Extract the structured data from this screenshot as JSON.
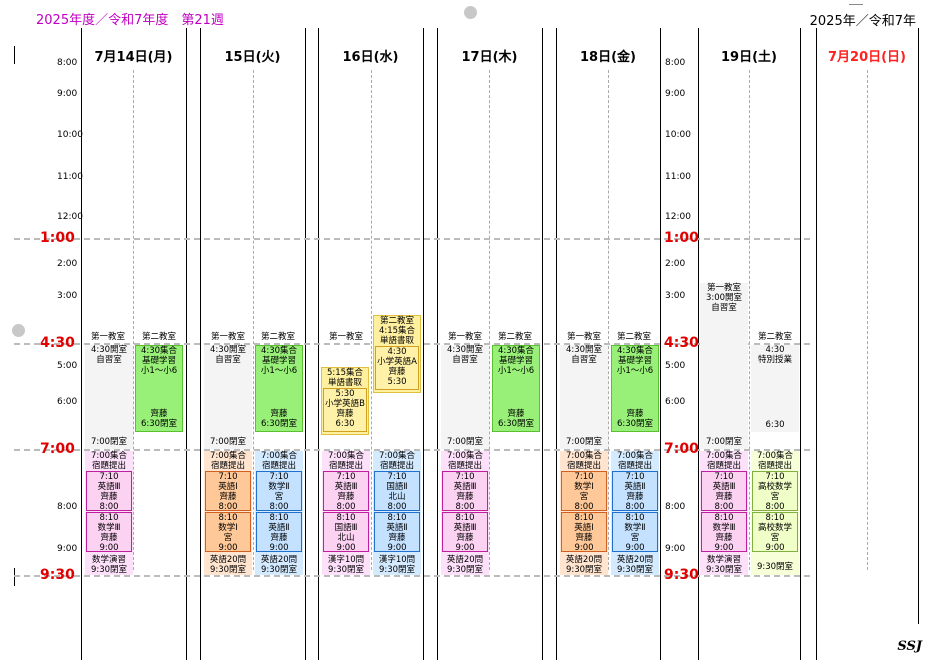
{
  "header": {
    "left": "2025年度／令和7年度　第21週",
    "right": "2025年／令和7年"
  },
  "days": [
    "7月14日(月)",
    "15日(火)",
    "16日(水)",
    "17日(木)",
    "18日(金)",
    "19日(土)",
    "7月20日(日)"
  ],
  "times": [
    "8:00",
    "9:00",
    "10:00",
    "11:00",
    "12:00",
    "1:00",
    "2:00",
    "3:00",
    "4:30",
    "5:00",
    "6:00",
    "7:00",
    "8:00",
    "9:00",
    "9:30"
  ],
  "room1": "第一教室",
  "room2": "第二教室",
  "mon": {
    "r1a": "4:30開室",
    "r1b": "自習室",
    "r1c": "7:00閉室",
    "r2a": "4:30集合",
    "r2b": "基礎学習",
    "r2c": "小1～小6",
    "r2d": "齊藤",
    "r2e": "6:30閉室",
    "e1a": "7:00集合",
    "e1b": "宿題提出",
    "e2a": "7:10",
    "e2b": "英語Ⅲ",
    "e2c": "齊藤",
    "e2d": "8:00",
    "e3a": "8:10",
    "e3b": "数学Ⅲ",
    "e3c": "齊藤",
    "e3d": "9:00",
    "e4a": "数学演習",
    "e4b": "9:30閉室"
  },
  "tue": {
    "r1a": "4:30開室",
    "r1b": "自習室",
    "r1c": "7:00閉室",
    "r2a": "4:30集合",
    "r2b": "基礎学習",
    "r2c": "小1～小6",
    "r2d": "齊藤",
    "r2e": "6:30閉室",
    "a1a": "7:00集合",
    "a1b": "宿題提出",
    "a2a": "7:10",
    "a2b": "英語Ⅰ",
    "a2c": "齊藤",
    "a2d": "8:00",
    "a3a": "8:10",
    "a3b": "数学Ⅰ",
    "a3c": "宮",
    "a3d": "9:00",
    "a4a": "英語20問",
    "a4b": "9:30閉室",
    "b1a": "7:00集合",
    "b1b": "宿題提出",
    "b2a": "7:10",
    "b2b": "数学Ⅱ",
    "b2c": "宮",
    "b2d": "8:00",
    "b3a": "8:10",
    "b3b": "英語Ⅱ",
    "b3c": "齊藤",
    "b3d": "9:00",
    "b4a": "英語20問",
    "b4b": "9:30閉室"
  },
  "wed": {
    "y1a": "5:15集合",
    "y1b": "単語書取",
    "y1c": "5:30",
    "y1d": "小学英語B",
    "y1e": "齊藤",
    "y1f": "6:30",
    "y2a": "第二教室",
    "y2b": "4:15集合",
    "y2c": "単語書取",
    "y2d": "4:30",
    "y2e": "小学英語A",
    "y2f": "齊藤",
    "y2g": "5:30",
    "a1a": "7:00集合",
    "a1b": "宿題提出",
    "a2a": "7:10",
    "a2b": "英語Ⅲ",
    "a2c": "齊藤",
    "a2d": "8:00",
    "a3a": "8:10",
    "a3b": "国語Ⅲ",
    "a3c": "北山",
    "a3d": "9:00",
    "a4a": "漢字10問",
    "a4b": "9:30閉室",
    "b1a": "7:00集合",
    "b1b": "宿題提出",
    "b2a": "7:10",
    "b2b": "国語Ⅱ",
    "b2c": "北山",
    "b2d": "8:00",
    "b3a": "8:10",
    "b3b": "英語Ⅱ",
    "b3c": "齊藤",
    "b3d": "9:00",
    "b4a": "漢字10問",
    "b4b": "9:30閉室"
  },
  "thu": {
    "r1a": "4:30開室",
    "r1b": "自習室",
    "r1c": "7:00閉室",
    "r2a": "4:30集合",
    "r2b": "基礎学習",
    "r2c": "小1～小6",
    "r2d": "齊藤",
    "r2e": "6:30閉室",
    "a1a": "7:00集合",
    "a1b": "宿題提出",
    "a2a": "7:10",
    "a2b": "英語Ⅲ",
    "a2c": "齊藤",
    "a2d": "8:00",
    "a3a": "8:10",
    "a3b": "英語Ⅲ",
    "a3c": "齊藤",
    "a3d": "9:00",
    "a4a": "英語20問",
    "a4b": "9:30閉室"
  },
  "fri": {
    "r1a": "4:30開室",
    "r1b": "自習室",
    "r1c": "7:00閉室",
    "r2a": "4:30集合",
    "r2b": "基礎学習",
    "r2c": "小1～小6",
    "r2d": "齊藤",
    "r2e": "6:30閉室",
    "a1a": "7:00集合",
    "a1b": "宿題提出",
    "a2a": "7:10",
    "a2b": "数学Ⅰ",
    "a2c": "宮",
    "a2d": "8:00",
    "a3a": "8:10",
    "a3b": "英語Ⅰ",
    "a3c": "齊藤",
    "a3d": "9:00",
    "a4a": "英語20問",
    "a4b": "9:30閉室",
    "b1a": "7:00集合",
    "b1b": "宿題提出",
    "b2a": "7:10",
    "b2b": "英語Ⅱ",
    "b2c": "齊藤",
    "b2d": "8:00",
    "b3a": "8:10",
    "b3b": "数学Ⅱ",
    "b3c": "宮",
    "b3d": "9:00",
    "b4a": "英語20問",
    "b4b": "9:30閉室"
  },
  "sat": {
    "r1a": "第一教室",
    "r1b": "3:00開室",
    "r1c": "自習室",
    "r1d": "7:00閉室",
    "r2a": "4:30",
    "r2b": "特別授業",
    "r2c": "6:30",
    "a1a": "7:00集合",
    "a1b": "宿題提出",
    "a2a": "7:10",
    "a2b": "英語Ⅲ",
    "a2c": "齊藤",
    "a2d": "8:00",
    "a3a": "8:10",
    "a3b": "数学Ⅲ",
    "a3c": "齊藤",
    "a3d": "9:00",
    "a4a": "数学演習",
    "a4b": "9:30閉室",
    "b1a": "7:00集合",
    "b1b": "宿題提出",
    "b2a": "7:10",
    "b2b": "高校数学",
    "b2c": "宮",
    "b2d": "8:00",
    "b3a": "8:10",
    "b3b": "高校数学",
    "b3c": "宮",
    "b3d": "9:00",
    "b4a": "9:30閉室"
  },
  "footer": "SSJ"
}
